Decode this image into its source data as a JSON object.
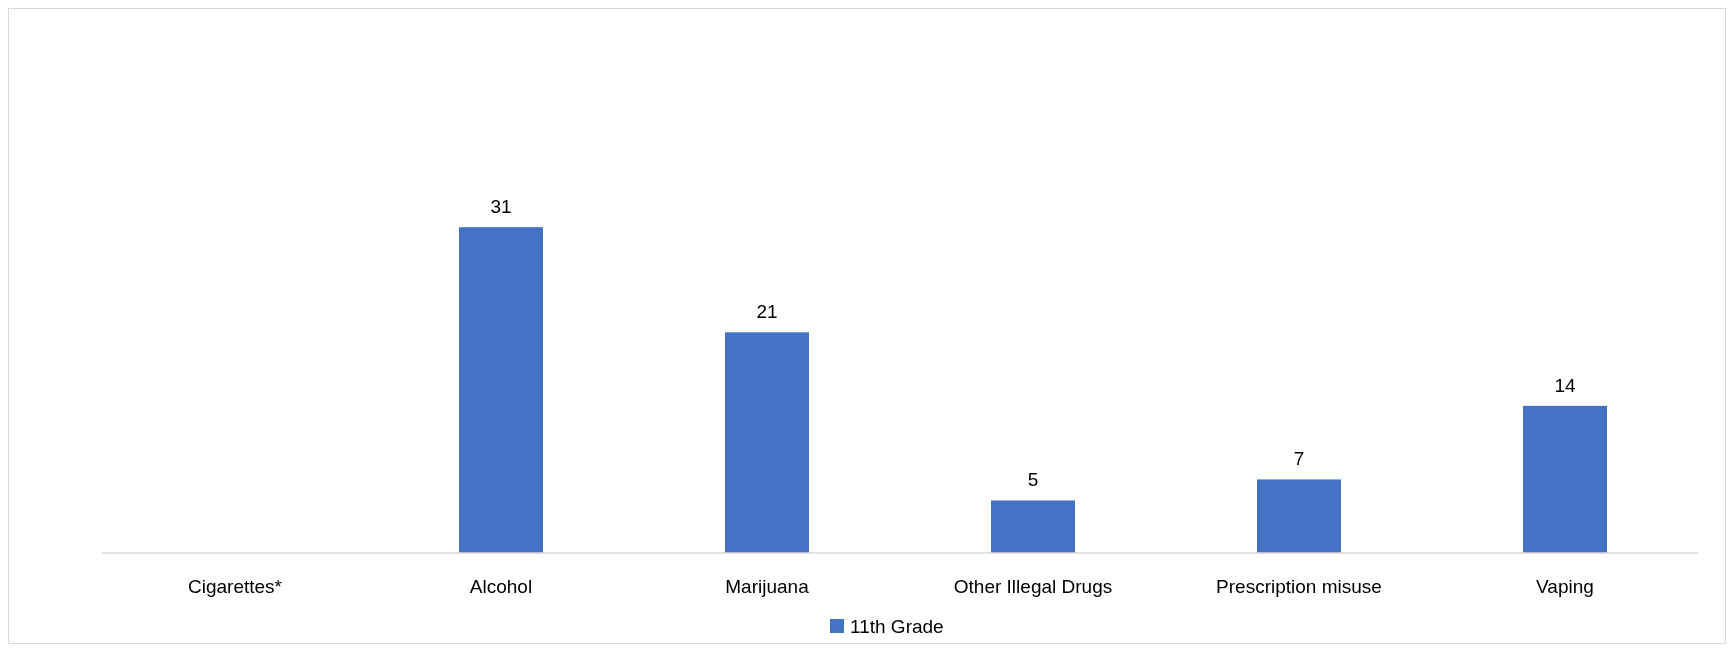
{
  "chart_data": {
    "type": "bar",
    "categories": [
      "Cigarettes*",
      "Alcohol",
      "Marijuana",
      "Other Illegal Drugs",
      "Prescription misuse",
      "Vaping"
    ],
    "series": [
      {
        "name": "11th Grade",
        "color": "#4472c4",
        "values": [
          null,
          31,
          21,
          5,
          7,
          14
        ]
      }
    ],
    "data_labels": true,
    "legend": "bottom"
  }
}
